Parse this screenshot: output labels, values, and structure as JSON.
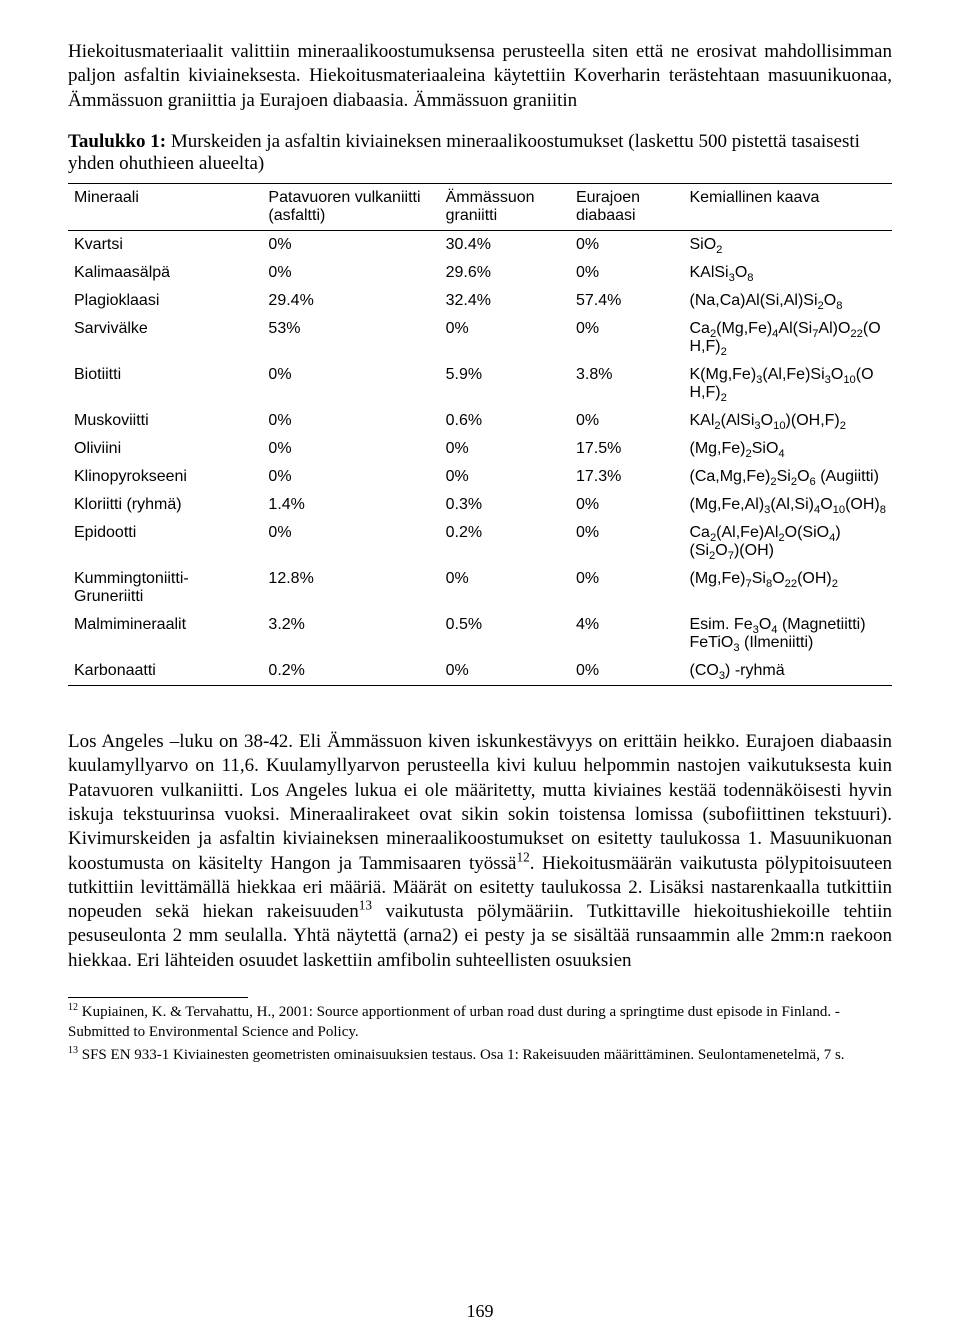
{
  "para1": "Hiekoitusmateriaalit valittiin mineraalikoostumuksensa perusteella siten että ne erosivat mahdollisimman paljon asfaltin kiviaineksesta. Hiekoitusmateriaaleina käytettiin Koverharin terästehtaan masuunikuonaa, Ämmässuon graniittia ja Eurajoen diabaasia. Ämmässuon graniitin",
  "captionPrefix": "Taulukko 1:",
  "captionRest": " Murskeiden ja asfaltin kiviaineksen mineraalikoostumukset (laskettu 500 pistettä tasaisesti yhden ohuthieen alueelta)",
  "headers": {
    "c1": "Mineraali",
    "c2": "Patavuoren vulkaniitti (asfaltti)",
    "c3": "Ämmässuon graniitti",
    "c4": "Eurajoen diabaasi",
    "c5": "Kemiallinen kaava"
  },
  "rows": [
    {
      "m": "Kvartsi",
      "a": "0%",
      "b": "30.4%",
      "c": "0%",
      "f": "SiO<sub>2</sub>"
    },
    {
      "m": "Kalimaasälpä",
      "a": "0%",
      "b": "29.6%",
      "c": "0%",
      "f": "KAlSi<sub>3</sub>O<sub>8</sub>"
    },
    {
      "m": "Plagioklaasi",
      "a": "29.4%",
      "b": "32.4%",
      "c": "57.4%",
      "f": "(Na,Ca)Al(Si,Al)Si<sub>2</sub>O<sub>8</sub>"
    },
    {
      "m": "Sarvivälke",
      "a": "53%",
      "b": "0%",
      "c": "0%",
      "f": "Ca<sub>2</sub>(Mg,Fe)<sub>4</sub>Al(Si<sub>7</sub>Al)O<sub>22</sub>(O H,F)<sub>2</sub>"
    },
    {
      "m": "Biotiitti",
      "a": "0%",
      "b": "5.9%",
      "c": "3.8%",
      "f": "K(Mg,Fe)<sub>3</sub>(Al,Fe)Si<sub>3</sub>O<sub>10</sub>(O H,F)<sub>2</sub>"
    },
    {
      "m": "Muskoviitti",
      "a": "0%",
      "b": "0.6%",
      "c": "0%",
      "f": "KAl<sub>2</sub>(AlSi<sub>3</sub>O<sub>10</sub>)(OH,F)<sub>2</sub>"
    },
    {
      "m": "Oliviini",
      "a": "0%",
      "b": "0%",
      "c": "17.5%",
      "f": "(Mg,Fe)<sub>2</sub>SiO<sub>4</sub>"
    },
    {
      "m": "Klinopyrokseeni",
      "a": "0%",
      "b": "0%",
      "c": "17.3%",
      "f": "(Ca,Mg,Fe)<sub>2</sub>Si<sub>2</sub>O<sub>6</sub> (Augiitti)"
    },
    {
      "m": "Kloriitti (ryhmä)",
      "a": "1.4%",
      "b": "0.3%",
      "c": "0%",
      "f": "(Mg,Fe,Al)<sub>3</sub>(Al,Si)<sub>4</sub>O<sub>10</sub>(OH)<sub>8</sub>"
    },
    {
      "m": "Epidootti",
      "a": "0%",
      "b": "0.2%",
      "c": "0%",
      "f": "Ca<sub>2</sub>(Al,Fe)Al<sub>2</sub>O(SiO<sub>4</sub>)(Si<sub>2</sub>O<sub>7</sub>)(OH)"
    },
    {
      "m": "Kummingtoniitti-Gruneriitti",
      "a": "12.8%",
      "b": "0%",
      "c": "0%",
      "f": "(Mg,Fe)<sub>7</sub>Si<sub>8</sub>O<sub>22</sub>(OH)<sub>2</sub>"
    },
    {
      "m": "Malmimineraalit",
      "a": "3.2%",
      "b": "0.5%",
      "c": "4%",
      "f": "Esim. Fe<sub>3</sub>O<sub>4</sub> (Magnetiitti) FeTiO<sub>3</sub> (Ilmeniitti)"
    },
    {
      "m": "Karbonaatti",
      "a": "0.2%",
      "b": "0%",
      "c": "0%",
      "f": "(CO<sub>3</sub>) -ryhmä"
    }
  ],
  "para2": "Los Angeles –luku on 38-42. Eli Ämmässuon kiven iskunkestävyys on erittäin heikko. Eurajoen diabaasin kuulamyllyarvo on 11,6. Kuulamyllyarvon perusteella kivi kuluu helpommin nastojen vaikutuksesta kuin Patavuoren vulkaniitti. Los Angeles lukua ei ole määritetty, mutta kiviaines kestää todennäköisesti hyvin iskuja tekstuurinsa vuoksi. Mineraalirakeet ovat sikin sokin toistensa lomissa (subofiittinen tekstuuri). Kivimurskeiden ja asfaltin kiviaineksen mineraalikoostumukset on esitetty taulukossa 1. Masuunikuonan koostumusta on käsitelty Hangon ja Tammisaaren työssä<sup>12</sup>. Hiekoitusmäärän vaikutusta pölypitoisuuteen tutkittiin levittämällä hiekkaa eri määriä. Määrät on esitetty taulukossa 2. Lisäksi nastarenkaalla tutkittiin nopeuden sekä hiekan rakeisuuden<sup>13</sup> vaikutusta pölymääriin. Tutkittaville hiekoitushiekoille tehtiin pesuseulonta 2 mm seulalla. Yhtä näytettä (arna2) ei pesty ja se sisältää runsaammin alle 2mm:n raekoon hiekkaa. Eri lähteiden osuudet laskettiin amfibolin suhteellisten osuuksien",
  "footnote12": "<sup>12</sup> Kupiainen, K. &amp; Tervahattu, H., 2001: Source apportionment of urban road dust during a springtime dust episode in Finland. - Submitted to Environmental Science and Policy.",
  "footnote13": "<sup>13</sup> SFS EN 933-1 Kiviainesten geometristen ominaisuuksien testaus. Osa 1: Rakeisuuden määrittäminen. Seulontamenetelmä, 7 s.",
  "pageNumber": "169"
}
